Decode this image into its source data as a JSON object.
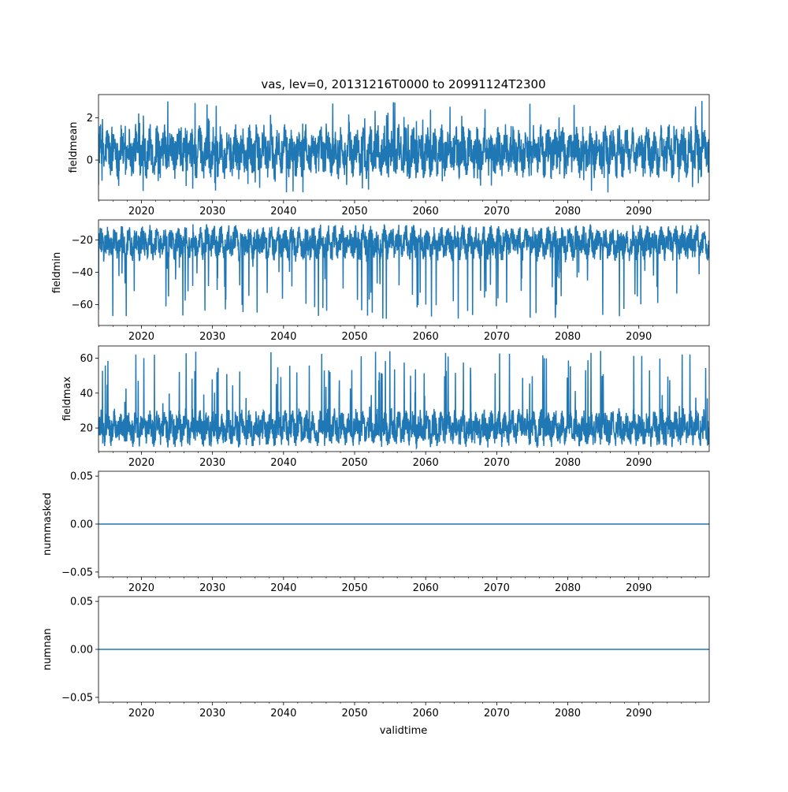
{
  "figure": {
    "title": "vas, lev=0, 20131216T0000 to 20991124T2300",
    "xlabel": "validtime"
  },
  "colors": {
    "series": "#1f77b4",
    "axes": "#000000"
  },
  "chart_data": [
    {
      "type": "line",
      "ylabel": "fieldmean",
      "xlim": [
        2013.96,
        2099.9
      ],
      "ylim": [
        -1.9,
        3.1
      ],
      "yticks": [
        0,
        2
      ],
      "xticks": [
        2020,
        2030,
        2040,
        2050,
        2060,
        2070,
        2080,
        2090
      ],
      "band": {
        "low": -0.75,
        "high": 1.55
      },
      "spike_range": {
        "low": -1.55,
        "high": 2.85
      },
      "series": [
        {
          "name": "",
          "values_summary": {
            "min": -1.7,
            "max": 2.85,
            "typical_low": -0.75,
            "typical_high": 1.55
          }
        }
      ]
    },
    {
      "type": "line",
      "ylabel": "fieldmin",
      "xlim": [
        2013.96,
        2099.9
      ],
      "ylim": [
        -73,
        -7.5
      ],
      "yticks": [
        -60,
        -40,
        -20
      ],
      "xticks": [
        2020,
        2030,
        2040,
        2050,
        2060,
        2070,
        2080,
        2090
      ],
      "band": {
        "low": -32,
        "high": -11.5
      },
      "spike_range": {
        "low": -69,
        "high": -10
      },
      "series": [
        {
          "name": "",
          "values_summary": {
            "min": -69,
            "max": -10,
            "typical_low": -32,
            "typical_high": -11.5
          }
        }
      ]
    },
    {
      "type": "line",
      "ylabel": "fieldmax",
      "xlim": [
        2013.96,
        2099.9
      ],
      "ylim": [
        6.5,
        67
      ],
      "yticks": [
        20,
        40,
        60
      ],
      "xticks": [
        2020,
        2030,
        2040,
        2050,
        2060,
        2070,
        2080,
        2090
      ],
      "band": {
        "low": 10,
        "high": 30
      },
      "spike_range": {
        "low": 9,
        "high": 64.5
      },
      "series": [
        {
          "name": "",
          "values_summary": {
            "min": 9,
            "max": 64.5,
            "typical_low": 10,
            "typical_high": 30
          }
        }
      ]
    },
    {
      "type": "line",
      "ylabel": "nummasked",
      "xlim": [
        2013.96,
        2099.9
      ],
      "ylim": [
        -0.055,
        0.055
      ],
      "yticks": [
        -0.05,
        0.0,
        0.05
      ],
      "ytick_labels": [
        "−0.05",
        "0.00",
        "0.05"
      ],
      "xticks": [
        2020,
        2030,
        2040,
        2050,
        2060,
        2070,
        2080,
        2090
      ],
      "series": [
        {
          "name": "",
          "x": [
            2013.96,
            2099.9
          ],
          "values": [
            0,
            0
          ]
        }
      ]
    },
    {
      "type": "line",
      "ylabel": "numnan",
      "xlim": [
        2013.96,
        2099.9
      ],
      "ylim": [
        -0.055,
        0.055
      ],
      "yticks": [
        -0.05,
        0.0,
        0.05
      ],
      "ytick_labels": [
        "−0.05",
        "0.00",
        "0.05"
      ],
      "xticks": [
        2020,
        2030,
        2040,
        2050,
        2060,
        2070,
        2080,
        2090
      ],
      "series": [
        {
          "name": "",
          "x": [
            2013.96,
            2099.9
          ],
          "values": [
            0,
            0
          ]
        }
      ]
    }
  ]
}
